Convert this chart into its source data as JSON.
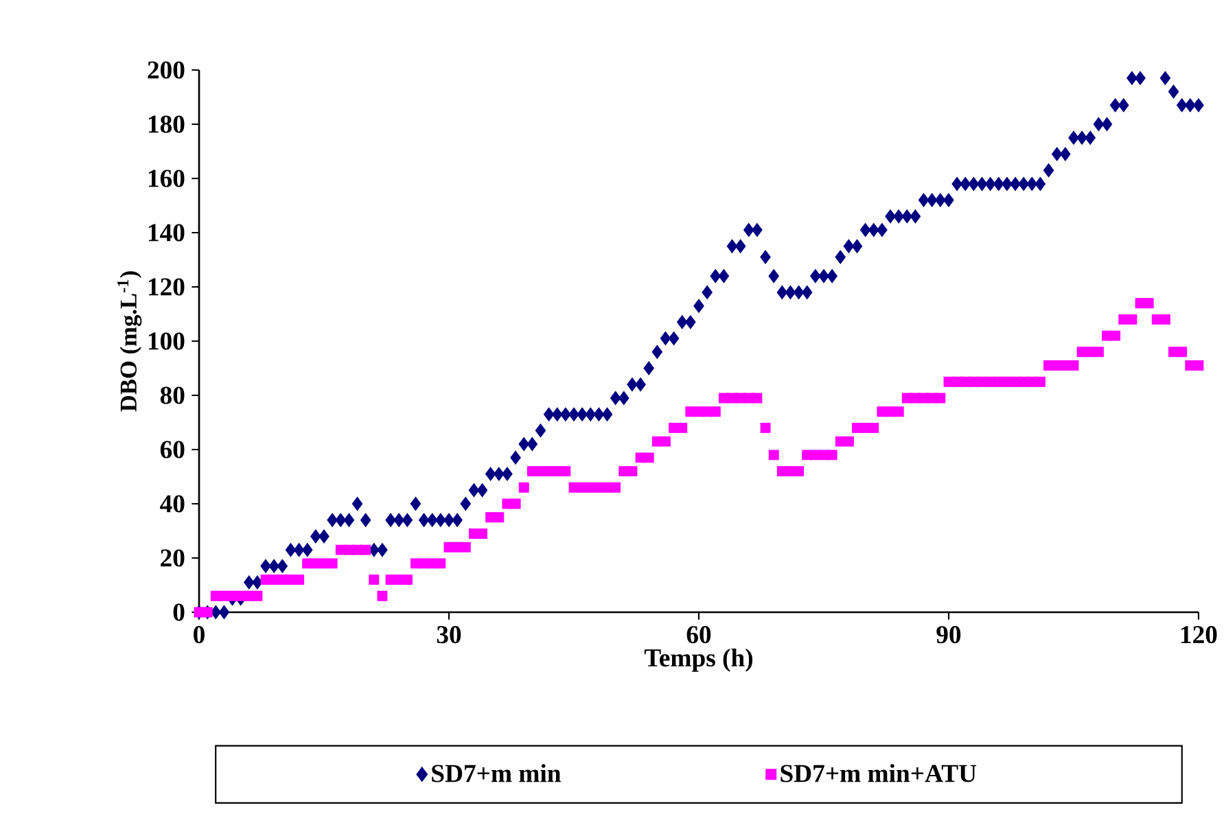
{
  "chart_data": {
    "type": "scatter",
    "xlabel": "Temps (h)",
    "ylabel": "DBO (mg.L$^{-1}$)",
    "x": [
      0,
      1,
      2,
      3,
      4,
      5,
      6,
      7,
      8,
      9,
      10,
      11,
      12,
      13,
      14,
      15,
      16,
      17,
      18,
      19,
      20,
      21,
      22,
      23,
      24,
      25,
      26,
      27,
      28,
      29,
      30,
      31,
      32,
      33,
      34,
      35,
      36,
      37,
      38,
      39,
      40,
      41,
      42,
      43,
      44,
      45,
      46,
      47,
      48,
      49,
      50,
      51,
      52,
      53,
      54,
      55,
      56,
      57,
      58,
      59,
      60,
      61,
      62,
      63,
      64,
      65,
      66,
      67,
      68,
      69,
      70,
      71,
      72,
      73,
      74,
      75,
      76,
      77,
      78,
      79,
      80,
      81,
      82,
      83,
      84,
      85,
      86,
      87,
      88,
      89,
      90,
      91,
      92,
      93,
      94,
      95,
      96,
      97,
      98,
      99,
      100,
      101,
      102,
      103,
      104,
      105,
      106,
      107,
      108,
      109,
      110,
      111,
      112,
      113,
      114,
      115,
      116,
      117,
      118,
      119,
      120
    ],
    "series": [
      {
        "name": "SD7+m min",
        "color": "#000080",
        "marker": "diamond",
        "values": [
          0,
          0,
          0,
          0,
          5,
          5,
          11,
          11,
          17,
          17,
          17,
          23,
          23,
          23,
          28,
          28,
          34,
          34,
          34,
          40,
          34,
          23,
          23,
          34,
          34,
          34,
          40,
          34,
          34,
          34,
          34,
          34,
          40,
          45,
          45,
          51,
          51,
          51,
          57,
          62,
          62,
          67,
          73,
          73,
          73,
          73,
          73,
          73,
          73,
          73,
          79,
          79,
          84,
          84,
          90,
          96,
          101,
          101,
          107,
          107,
          113,
          118,
          124,
          124,
          135,
          135,
          141,
          141,
          131,
          124,
          118,
          118,
          118,
          118,
          124,
          124,
          124,
          131,
          135,
          135,
          141,
          141,
          141,
          146,
          146,
          146,
          146,
          152,
          152,
          152,
          152,
          158,
          158,
          158,
          158,
          158,
          158,
          158,
          158,
          158,
          158,
          158,
          163,
          169,
          169,
          175,
          175,
          175,
          180,
          180,
          187,
          187,
          197,
          197,
          null,
          null,
          197,
          192,
          187,
          187,
          187
        ]
      },
      {
        "name": "SD7+m min+ATU",
        "color": "#ff00ff",
        "marker": "square",
        "values": [
          0,
          0,
          6,
          6,
          6,
          6,
          6,
          6,
          12,
          12,
          12,
          12,
          12,
          18,
          18,
          18,
          18,
          23,
          23,
          23,
          23,
          12,
          6,
          12,
          12,
          12,
          18,
          18,
          18,
          18,
          24,
          24,
          24,
          29,
          29,
          35,
          35,
          40,
          40,
          46,
          52,
          52,
          52,
          52,
          52,
          46,
          46,
          46,
          46,
          46,
          46,
          52,
          52,
          57,
          57,
          63,
          63,
          68,
          68,
          74,
          74,
          74,
          74,
          79,
          79,
          79,
          79,
          79,
          68,
          58,
          52,
          52,
          52,
          58,
          58,
          58,
          58,
          63,
          63,
          68,
          68,
          68,
          74,
          74,
          74,
          79,
          79,
          79,
          79,
          79,
          85,
          85,
          85,
          85,
          85,
          85,
          85,
          85,
          85,
          85,
          85,
          85,
          91,
          91,
          91,
          91,
          96,
          96,
          96,
          102,
          102,
          108,
          108,
          114,
          114,
          108,
          108,
          96,
          96,
          91,
          91
        ]
      }
    ],
    "xlim": [
      0,
      120
    ],
    "xticks": [
      0,
      30,
      60,
      90,
      120
    ],
    "ylim": [
      0,
      200
    ],
    "yticks": [
      0,
      20,
      40,
      60,
      80,
      100,
      120,
      140,
      160,
      180,
      200
    ],
    "legend": "bottom",
    "grid": false
  }
}
